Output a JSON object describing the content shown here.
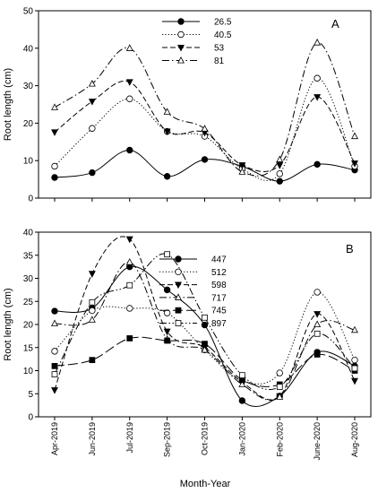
{
  "figure": {
    "xlabel": "Month-Year",
    "months": [
      "Apr-2019",
      "Jun-2019",
      "Jul-2019",
      "Sep-2019",
      "Oct-2019",
      "Jan-2020",
      "Feb-2020",
      "June-2020",
      "Aug-2020"
    ]
  },
  "chart_data": [
    {
      "type": "line",
      "panel_label": "A",
      "ylabel": "Root length (cm)",
      "ylim": [
        0,
        50
      ],
      "yticks": [
        0,
        10,
        20,
        30,
        40,
        50
      ],
      "categories": [
        "Apr-2019",
        "Jun-2019",
        "Jul-2019",
        "Sep-2019",
        "Oct-2019",
        "Jan-2020",
        "Feb-2020",
        "June-2020",
        "Aug-2020"
      ],
      "legend_position": "top-center",
      "series": [
        {
          "name": "26.5",
          "marker": "filled-circle",
          "dash": "solid",
          "values": [
            5.5,
            6.8,
            12.8,
            5.8,
            10.3,
            8.5,
            4.5,
            9.0,
            7.5
          ]
        },
        {
          "name": "40.5",
          "marker": "open-circle",
          "dash": "dotted",
          "values": [
            8.5,
            18.6,
            26.5,
            17.8,
            16.5,
            7.8,
            6.5,
            32.0,
            8.5
          ]
        },
        {
          "name": "53",
          "marker": "filled-triangle-down",
          "dash": "dashed",
          "values": [
            17.6,
            25.8,
            31.0,
            17.8,
            17.5,
            8.8,
            8.8,
            27.0,
            9.3
          ]
        },
        {
          "name": "81",
          "marker": "open-triangle-up",
          "dash": "dash-dot",
          "values": [
            24.2,
            30.5,
            40.0,
            23.0,
            18.5,
            7.0,
            10.3,
            41.5,
            16.5
          ]
        }
      ]
    },
    {
      "type": "line",
      "panel_label": "B",
      "ylabel": "Root length (cm)",
      "ylim": [
        0,
        40
      ],
      "yticks": [
        0,
        5,
        10,
        15,
        20,
        25,
        30,
        35,
        40
      ],
      "categories": [
        "Apr-2019",
        "Jun-2019",
        "Jul-2019",
        "Sep-2019",
        "Oct-2019",
        "Jan-2020",
        "Feb-2020",
        "June-2020",
        "Aug-2020"
      ],
      "legend_position": "top-center",
      "series": [
        {
          "name": "447",
          "marker": "filled-circle",
          "dash": "solid",
          "values": [
            22.9,
            23.5,
            32.5,
            27.5,
            19.9,
            3.5,
            4.5,
            14.0,
            11.0
          ]
        },
        {
          "name": "512",
          "marker": "open-circle",
          "dash": "dotted",
          "values": [
            14.2,
            23.0,
            23.5,
            22.5,
            14.5,
            7.8,
            9.5,
            27.0,
            12.3
          ]
        },
        {
          "name": "598",
          "marker": "filled-triangle-down",
          "dash": "dashed",
          "values": [
            5.8,
            31.0,
            38.5,
            18.5,
            15.0,
            7.5,
            4.5,
            22.3,
            7.8
          ]
        },
        {
          "name": "717",
          "marker": "open-triangle-up",
          "dash": "dash-dot",
          "values": [
            20.2,
            21.0,
            33.5,
            16.8,
            14.5,
            7.0,
            4.3,
            20.0,
            18.8
          ]
        },
        {
          "name": "745",
          "marker": "filled-square",
          "dash": "long-dash",
          "values": [
            11.0,
            12.3,
            17.0,
            16.5,
            15.8,
            8.0,
            7.0,
            13.5,
            10.0
          ]
        },
        {
          "name": "897",
          "marker": "open-square",
          "dash": "dash-dot-dot",
          "values": [
            9.2,
            24.8,
            28.5,
            35.2,
            21.5,
            9.0,
            6.5,
            18.0,
            10.5
          ]
        }
      ]
    }
  ]
}
